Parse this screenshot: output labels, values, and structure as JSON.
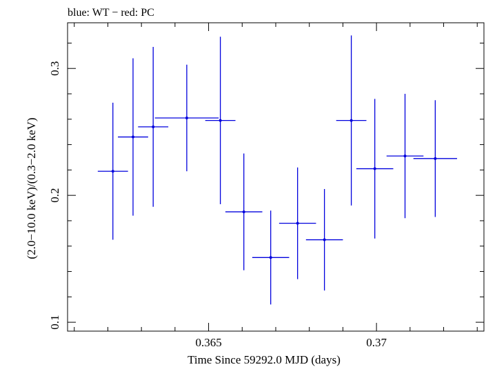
{
  "chart_data": {
    "type": "scatter",
    "title": "blue: WT − red: PC",
    "xlabel": "Time Since 59292.0 MJD (days)",
    "ylabel": "(2.0−10.0 keV)/(0.3−2.0 keV)",
    "xlim": [
      0.3608,
      0.3732
    ],
    "ylim": [
      0.093,
      0.336
    ],
    "x_ticks": [
      0.365,
      0.37
    ],
    "x_tick_labels": [
      "0.365",
      "0.37"
    ],
    "y_ticks": [
      0.1,
      0.2,
      0.3
    ],
    "y_tick_labels": [
      "0.1",
      "0.2",
      "0.3"
    ],
    "grid": false,
    "series": [
      {
        "color": "#0000dd",
        "points": [
          {
            "x": 0.36215,
            "xerr": 0.00045,
            "y": 0.219,
            "yerr": 0.054
          },
          {
            "x": 0.36275,
            "xerr": 0.00045,
            "y": 0.246,
            "yerr": 0.062
          },
          {
            "x": 0.36335,
            "xerr": 0.00045,
            "y": 0.254,
            "yerr": 0.063
          },
          {
            "x": 0.36435,
            "xerr": 0.00095,
            "y": 0.261,
            "yerr": 0.042
          },
          {
            "x": 0.36535,
            "xerr": 0.00045,
            "y": 0.259,
            "yerr": 0.066
          },
          {
            "x": 0.36605,
            "xerr": 0.00055,
            "y": 0.187,
            "yerr": 0.046
          },
          {
            "x": 0.36685,
            "xerr": 0.00055,
            "y": 0.151,
            "yerr": 0.037
          },
          {
            "x": 0.36765,
            "xerr": 0.00055,
            "y": 0.178,
            "yerr": 0.044
          },
          {
            "x": 0.36845,
            "xerr": 0.00055,
            "y": 0.165,
            "yerr": 0.04
          },
          {
            "x": 0.36925,
            "xerr": 0.00045,
            "y": 0.259,
            "yerr": 0.067
          },
          {
            "x": 0.36995,
            "xerr": 0.00055,
            "y": 0.221,
            "yerr": 0.055
          },
          {
            "x": 0.37085,
            "xerr": 0.00055,
            "y": 0.231,
            "yerr": 0.049
          },
          {
            "x": 0.37175,
            "xerr": 0.00065,
            "y": 0.229,
            "yerr": 0.046
          }
        ]
      }
    ]
  }
}
